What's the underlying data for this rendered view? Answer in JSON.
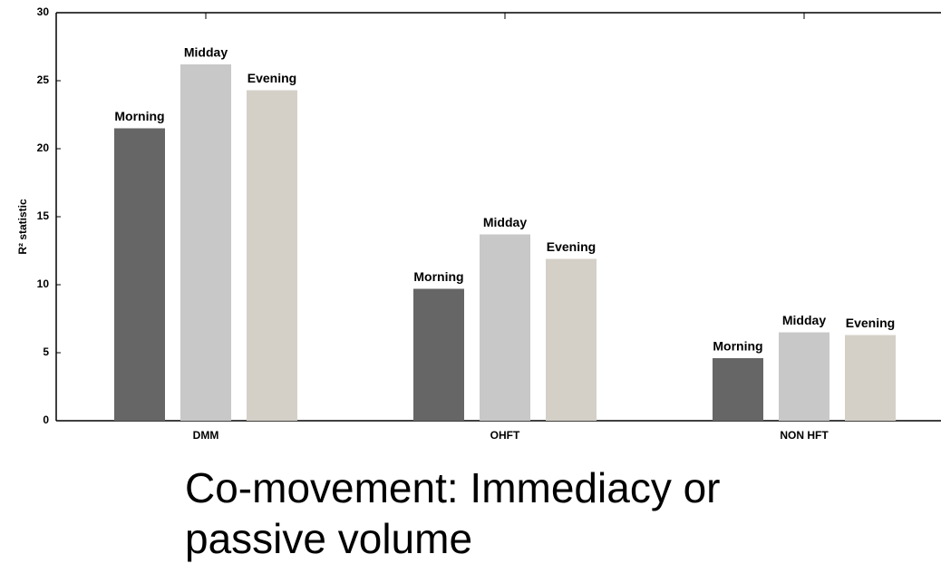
{
  "chart_data": {
    "type": "bar",
    "title": "Co-movement: Immediacy or passive volume",
    "ylabel": "R² statistic",
    "categories": [
      "DMM",
      "OHFT",
      "NON HFT"
    ],
    "series": [
      {
        "name": "Morning",
        "color": "#666666",
        "values": [
          21.5,
          9.7,
          4.6
        ]
      },
      {
        "name": "Midday",
        "color": "#c8c8c8",
        "values": [
          26.2,
          13.7,
          6.5
        ]
      },
      {
        "name": "Evening",
        "color": "#d4d0c8",
        "values": [
          24.3,
          11.9,
          6.3
        ]
      }
    ],
    "ylim": [
      0,
      30
    ],
    "yticks": [
      0,
      5,
      10,
      15,
      20,
      25,
      30
    ],
    "grid": false
  }
}
